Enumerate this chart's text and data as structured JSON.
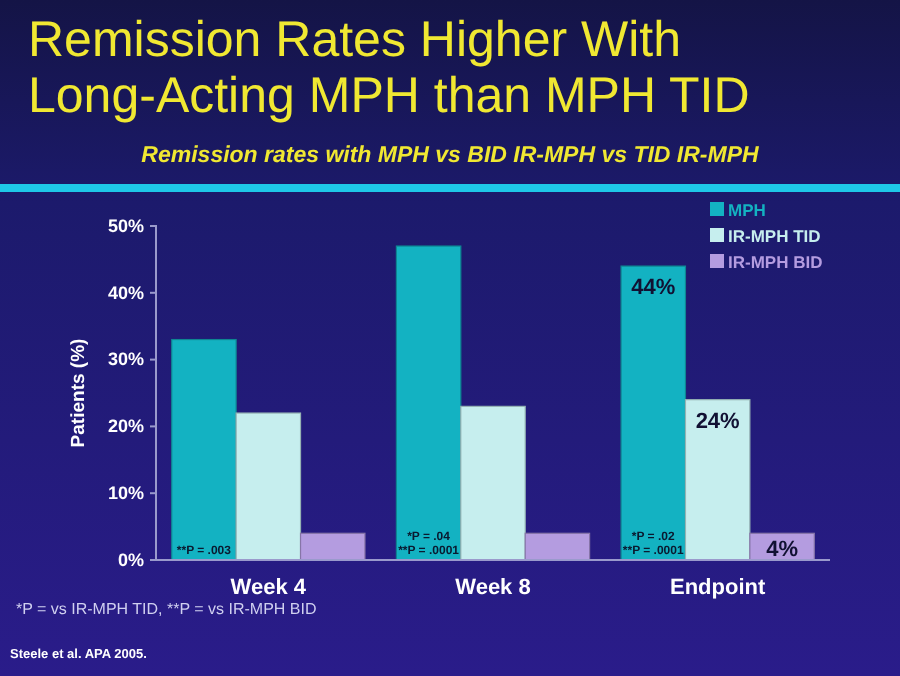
{
  "chart_data": {
    "type": "bar",
    "title": "Remission Rates Higher With Long-Acting MPH than MPH TID",
    "subtitle": "Remission rates with MPH vs BID IR-MPH vs TID IR-MPH",
    "ylabel": "Patients (%)",
    "categories": [
      "Week 4",
      "Week 8",
      "Endpoint"
    ],
    "series": [
      {
        "name": "MPH",
        "color": "#13b2c2",
        "values": [
          33,
          47,
          44
        ],
        "value_labels": [
          null,
          null,
          "44%"
        ]
      },
      {
        "name": "IR-MPH TID",
        "color": "#c6eeee",
        "values": [
          22,
          23,
          24
        ],
        "value_labels": [
          null,
          null,
          "24%"
        ]
      },
      {
        "name": "IR-MPH BID",
        "color": "#b49ce0",
        "values": [
          4,
          4,
          4
        ],
        "value_labels": [
          null,
          null,
          "4%"
        ]
      }
    ],
    "ylim": [
      0,
      50
    ],
    "yticks": [
      {
        "value": 0,
        "label": "0%"
      },
      {
        "value": 10,
        "label": "10%"
      },
      {
        "value": 20,
        "label": "20%"
      },
      {
        "value": 30,
        "label": "30%"
      },
      {
        "value": 40,
        "label": "40%"
      },
      {
        "value": 50,
        "label": "50%"
      }
    ],
    "legend": "top right",
    "annotations": [
      "**P = .003",
      "*P = .04",
      "**P = .0001",
      "*P = .02",
      "**P = .0001",
      "*P = vs IR-MPH TID,   **P = vs IR-MPH BID",
      "Steele et al. APA 2005."
    ]
  }
}
